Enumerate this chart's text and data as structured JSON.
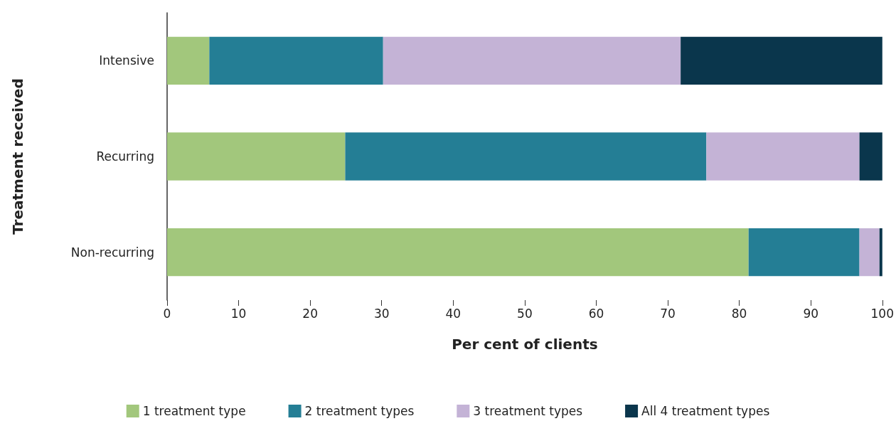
{
  "chart_data": {
    "type": "bar",
    "orientation": "horizontal",
    "stacked": true,
    "xlabel": "Per cent of clients",
    "ylabel": "Treatment received",
    "categories": [
      "Intensive",
      "Recurring",
      "Non-recurring"
    ],
    "series": [
      {
        "name": "1 treatment type",
        "color": "#a2c77c",
        "values": [
          5.9,
          24.9,
          81.3
        ]
      },
      {
        "name": "2 treatment types",
        "color": "#247e95",
        "values": [
          24.3,
          50.5,
          15.5
        ]
      },
      {
        "name": "3 treatment types",
        "color": "#c4b3d6",
        "values": [
          41.6,
          21.4,
          2.8
        ]
      },
      {
        "name": "All 4 treatment types",
        "color": "#0a364c",
        "values": [
          28.2,
          3.2,
          0.4
        ]
      }
    ],
    "xlim": [
      0,
      100
    ],
    "xticks": [
      0,
      10,
      20,
      30,
      40,
      50,
      60,
      70,
      80,
      90,
      100
    ],
    "grid": false,
    "legend": "bottom"
  }
}
